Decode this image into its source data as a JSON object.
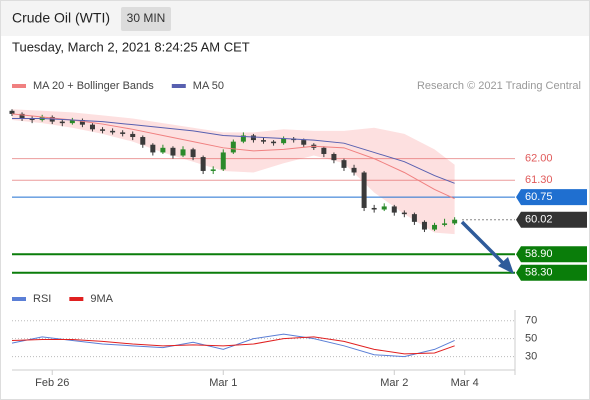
{
  "header": {
    "title": "Crude Oil (WTI)",
    "timeframe": "30 MIN"
  },
  "timestamp": "Tuesday, March 2, 2021 8:24:25 AM CET",
  "chart_data": [
    {
      "type": "candlestick",
      "credit": "Research © 2021 Trading Central",
      "up_color": "#2a8a2a",
      "down_color": "#3a3a3a",
      "xlim": [
        0,
        50
      ],
      "ylim": [
        58,
        63.9
      ],
      "ohlc": [
        [
          63.55,
          63.6,
          63.38,
          63.45
        ],
        [
          63.45,
          63.5,
          63.22,
          63.3
        ],
        [
          63.3,
          63.38,
          63.15,
          63.25
        ],
        [
          63.25,
          63.42,
          63.2,
          63.35
        ],
        [
          63.35,
          63.4,
          63.12,
          63.2
        ],
        [
          63.2,
          63.28,
          63.05,
          63.15
        ],
        [
          63.15,
          63.32,
          63.1,
          63.25
        ],
        [
          63.25,
          63.3,
          63.02,
          63.1
        ],
        [
          63.1,
          63.15,
          62.88,
          62.95
        ],
        [
          62.95,
          63.02,
          62.82,
          62.9
        ],
        [
          62.9,
          62.98,
          62.78,
          62.85
        ],
        [
          62.85,
          62.92,
          62.72,
          62.8
        ],
        [
          62.8,
          62.88,
          62.6,
          62.7
        ],
        [
          62.7,
          62.75,
          62.35,
          62.45
        ],
        [
          62.45,
          62.5,
          62.1,
          62.2
        ],
        [
          62.2,
          62.45,
          62.15,
          62.35
        ],
        [
          62.35,
          62.4,
          62.0,
          62.1
        ],
        [
          62.1,
          62.4,
          62.05,
          62.3
        ],
        [
          62.3,
          62.35,
          61.95,
          62.05
        ],
        [
          62.05,
          62.1,
          61.5,
          61.6
        ],
        [
          61.6,
          61.75,
          61.5,
          61.65
        ],
        [
          61.65,
          62.3,
          61.6,
          62.2
        ],
        [
          62.2,
          62.62,
          62.15,
          62.55
        ],
        [
          62.55,
          62.85,
          62.5,
          62.75
        ],
        [
          62.75,
          62.8,
          62.52,
          62.6
        ],
        [
          62.6,
          62.68,
          62.48,
          62.55
        ],
        [
          62.55,
          62.6,
          62.42,
          62.5
        ],
        [
          62.5,
          62.72,
          62.45,
          62.65
        ],
        [
          62.65,
          62.7,
          62.52,
          62.6
        ],
        [
          62.6,
          62.65,
          62.38,
          62.45
        ],
        [
          62.45,
          62.5,
          62.28,
          62.35
        ],
        [
          62.35,
          62.4,
          62.05,
          62.15
        ],
        [
          62.15,
          62.2,
          61.85,
          61.95
        ],
        [
          61.95,
          62.0,
          61.6,
          61.7
        ],
        [
          61.7,
          61.8,
          61.45,
          61.55
        ],
        [
          61.55,
          61.6,
          60.3,
          60.4
        ],
        [
          60.4,
          60.5,
          60.25,
          60.35
        ],
        [
          60.35,
          60.55,
          60.3,
          60.45
        ],
        [
          60.45,
          60.5,
          60.15,
          60.25
        ],
        [
          60.25,
          60.32,
          60.1,
          60.2
        ],
        [
          60.2,
          60.25,
          59.85,
          59.95
        ],
        [
          59.95,
          60.0,
          59.62,
          59.7
        ],
        [
          59.7,
          59.92,
          59.65,
          59.85
        ],
        [
          59.85,
          60.05,
          59.8,
          59.9
        ],
        [
          59.9,
          60.1,
          59.85,
          60.02
        ]
      ],
      "series": [
        {
          "name": "MA 20 + Bollinger Bands",
          "color": "#f08080",
          "band_color": "#fde0e0",
          "x": [
            0,
            3,
            6,
            9,
            12,
            15,
            18,
            21,
            24,
            27,
            30,
            33,
            36,
            39,
            42,
            44
          ],
          "values": [
            63.45,
            63.35,
            63.25,
            63.12,
            62.95,
            62.75,
            62.55,
            62.35,
            62.25,
            62.3,
            62.4,
            62.35,
            62.0,
            61.55,
            61.0,
            60.7
          ],
          "upper": [
            63.6,
            63.55,
            63.5,
            63.4,
            63.3,
            63.15,
            63.0,
            62.85,
            62.85,
            62.95,
            62.9,
            62.9,
            63.0,
            62.8,
            62.3,
            61.8
          ],
          "lower": [
            63.25,
            63.15,
            63.0,
            62.8,
            62.55,
            62.2,
            61.9,
            61.6,
            61.55,
            61.85,
            62.1,
            61.85,
            60.9,
            60.2,
            59.6,
            59.55
          ]
        },
        {
          "name": "MA 50",
          "color": "#5860b0",
          "x": [
            0,
            3,
            6,
            9,
            12,
            15,
            18,
            21,
            24,
            27,
            30,
            33,
            36,
            39,
            42,
            44
          ],
          "values": [
            63.3,
            63.3,
            63.25,
            63.2,
            63.1,
            63.0,
            62.9,
            62.75,
            62.7,
            62.65,
            62.6,
            62.5,
            62.2,
            61.9,
            61.45,
            61.2
          ]
        }
      ],
      "levels": [
        {
          "value": 62,
          "label": "62.00",
          "color": "#e05a5a",
          "style": "text"
        },
        {
          "value": 61.3,
          "label": "61.30",
          "color": "#e05a5a",
          "style": "text"
        },
        {
          "value": 60.75,
          "label": "60.75",
          "color": "#1f6fd0",
          "style": "box"
        },
        {
          "value": 60.02,
          "label": "60.02",
          "color": "#333333",
          "style": "box-dotted"
        },
        {
          "value": 58.9,
          "label": "58.90",
          "color": "#0a7d0a",
          "style": "box-bold"
        },
        {
          "value": 58.3,
          "label": "58.30",
          "color": "#0a7d0a",
          "style": "box-bold"
        }
      ]
    },
    {
      "type": "line",
      "xlim": [
        0,
        50
      ],
      "ylim": [
        15,
        82
      ],
      "yticks": [
        70,
        50,
        30
      ],
      "xticks": [
        {
          "value": 4,
          "label": "Feb 26"
        },
        {
          "value": 21,
          "label": "Mar 1"
        },
        {
          "value": 38,
          "label": "Mar 2"
        },
        {
          "value": 45,
          "label": "Mar 4"
        }
      ],
      "series": [
        {
          "name": "RSI",
          "color": "#5b7fd6",
          "x": [
            0,
            3,
            6,
            9,
            12,
            15,
            18,
            21,
            24,
            27,
            30,
            33,
            36,
            39,
            42,
            44
          ],
          "values": [
            45,
            52,
            48,
            44,
            42,
            40,
            46,
            38,
            50,
            55,
            50,
            42,
            32,
            30,
            38,
            48
          ]
        },
        {
          "name": "9MA",
          "color": "#e02020",
          "x": [
            0,
            3,
            6,
            9,
            12,
            15,
            18,
            21,
            24,
            27,
            30,
            33,
            36,
            39,
            42,
            44
          ],
          "values": [
            48,
            49,
            49,
            47,
            44,
            42,
            43,
            42,
            44,
            50,
            52,
            47,
            38,
            33,
            34,
            42
          ]
        }
      ]
    }
  ]
}
